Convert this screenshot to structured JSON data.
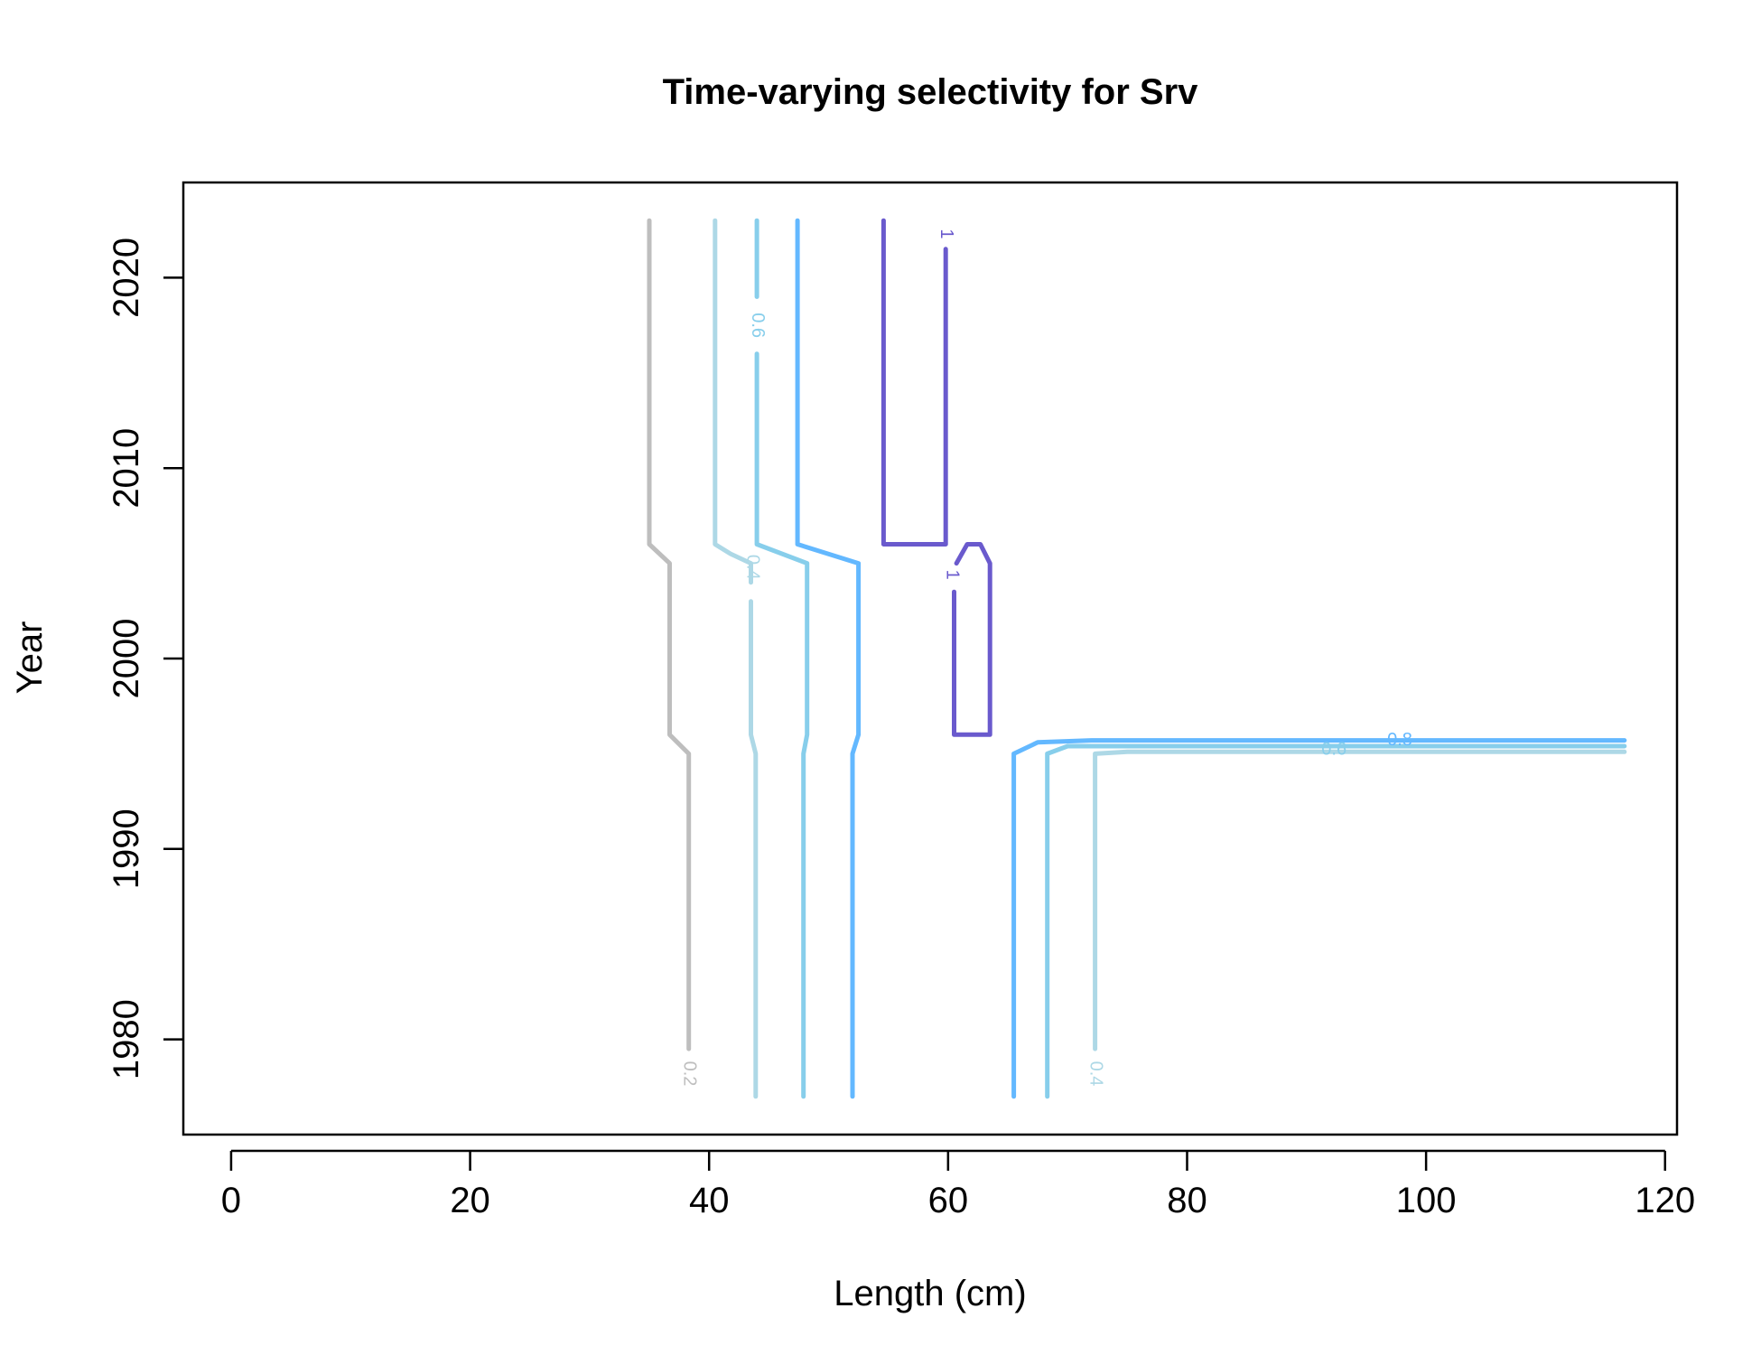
{
  "chart_data": {
    "type": "contour",
    "title": "Time-varying selectivity for Srv",
    "xlabel": "Length (cm)",
    "ylabel": "Year",
    "xlim": [
      -4,
      121
    ],
    "ylim": [
      1975,
      2025
    ],
    "xticks": [
      0,
      20,
      40,
      60,
      80,
      100,
      120
    ],
    "yticks": [
      1980,
      1990,
      2000,
      2010,
      2020
    ],
    "colors": {
      "0.2": "#bebebe",
      "0.4": "#add8e6",
      "0.6": "#87ceeb",
      "0.8": "#63b8ff",
      "1": "#6a5acd"
    },
    "contours": [
      {
        "level": "0.2",
        "color": "#bebebe",
        "label": "0.2",
        "points": [
          [
            35.0,
            2023
          ],
          [
            35.0,
            2006
          ],
          [
            36.7,
            2005
          ],
          [
            36.7,
            1996
          ],
          [
            38.3,
            1995
          ],
          [
            38.3,
            1979.5
          ]
        ]
      },
      {
        "level": "0.4",
        "color": "#add8e6",
        "label": "0.4",
        "points": [
          [
            40.5,
            2023
          ],
          [
            40.5,
            2006
          ],
          [
            41.8,
            2005.5
          ],
          [
            43.5,
            2005
          ],
          [
            43.5,
            2004
          ]
        ]
      },
      {
        "level": "0.4",
        "color": "#add8e6",
        "label": "",
        "points": [
          [
            43.5,
            2003
          ],
          [
            43.5,
            1996
          ],
          [
            43.9,
            1995
          ],
          [
            43.9,
            1977
          ]
        ]
      },
      {
        "level": "0.4",
        "color": "#add8e6",
        "label": "0.4",
        "points": [
          [
            72.3,
            1979.5
          ],
          [
            72.3,
            1995
          ],
          [
            75,
            1995.1
          ],
          [
            116.6,
            1995.1
          ]
        ]
      },
      {
        "level": "0.6",
        "color": "#87ceeb",
        "label": "0.6",
        "points": [
          [
            44.0,
            2023
          ],
          [
            44.0,
            2019
          ]
        ]
      },
      {
        "level": "0.6",
        "color": "#87ceeb",
        "label": "",
        "points": [
          [
            44.0,
            2016
          ],
          [
            44.0,
            2006
          ],
          [
            48.2,
            2005
          ],
          [
            48.2,
            1996
          ],
          [
            47.9,
            1995
          ],
          [
            47.9,
            1977
          ]
        ]
      },
      {
        "level": "0.6",
        "color": "#87ceeb",
        "label": "0.6",
        "points": [
          [
            68.3,
            1977
          ],
          [
            68.3,
            1995
          ],
          [
            70,
            1995.4
          ],
          [
            116.6,
            1995.4
          ]
        ]
      },
      {
        "level": "0.8",
        "color": "#63b8ff",
        "label": "",
        "points": [
          [
            47.4,
            2023
          ],
          [
            47.4,
            2006
          ],
          [
            52.5,
            2005
          ],
          [
            52.5,
            1996
          ],
          [
            52.0,
            1995
          ],
          [
            52.0,
            1977
          ]
        ]
      },
      {
        "level": "0.8",
        "color": "#63b8ff",
        "label": "0.8",
        "points": [
          [
            65.5,
            1977
          ],
          [
            65.5,
            1995
          ],
          [
            67.5,
            1995.6
          ],
          [
            72,
            1995.7
          ],
          [
            116.6,
            1995.7
          ]
        ]
      },
      {
        "level": "1",
        "color": "#6a5acd",
        "label": "1",
        "points": [
          [
            54.6,
            2023
          ],
          [
            54.6,
            2006
          ],
          [
            59.8,
            2006
          ],
          [
            59.8,
            2021.5
          ]
        ]
      },
      {
        "level": "1",
        "color": "#6a5acd",
        "label": "1",
        "points": [
          [
            60.5,
            2003.5
          ],
          [
            60.5,
            1996
          ],
          [
            61.0,
            1996
          ],
          [
            63.5,
            1996
          ],
          [
            63.5,
            2005
          ],
          [
            62.7,
            2006
          ],
          [
            61.6,
            2006
          ],
          [
            60.7,
            2005
          ]
        ]
      }
    ],
    "contour_labels": [
      {
        "text": "0.2",
        "level": "0.2",
        "color": "#bebebe",
        "x": 38.3,
        "y": 1978.2,
        "rotate": 90
      },
      {
        "text": "0.4",
        "level": "0.4",
        "color": "#add8e6",
        "x": 43.6,
        "y": 2004.8,
        "rotate": 90
      },
      {
        "text": "0.4",
        "level": "0.4",
        "color": "#add8e6",
        "x": 72.3,
        "y": 1978.2,
        "rotate": 90
      },
      {
        "text": "0.6",
        "level": "0.6",
        "color": "#87ceeb",
        "x": 44.0,
        "y": 2017.5,
        "rotate": 90
      },
      {
        "text": "0.6",
        "level": "0.6",
        "color": "#87ceeb",
        "x": 92.3,
        "y": 1995.2,
        "rotate": 0
      },
      {
        "text": "0.8",
        "level": "0.8",
        "color": "#63b8ff",
        "x": 97.8,
        "y": 1995.7,
        "rotate": 0
      },
      {
        "text": "1",
        "level": "1",
        "color": "#6a5acd",
        "x": 59.8,
        "y": 2022.3,
        "rotate": 90
      },
      {
        "text": "1",
        "level": "1",
        "color": "#6a5acd",
        "x": 60.3,
        "y": 2004.4,
        "rotate": 90
      }
    ],
    "grid": false,
    "legend": "none"
  }
}
